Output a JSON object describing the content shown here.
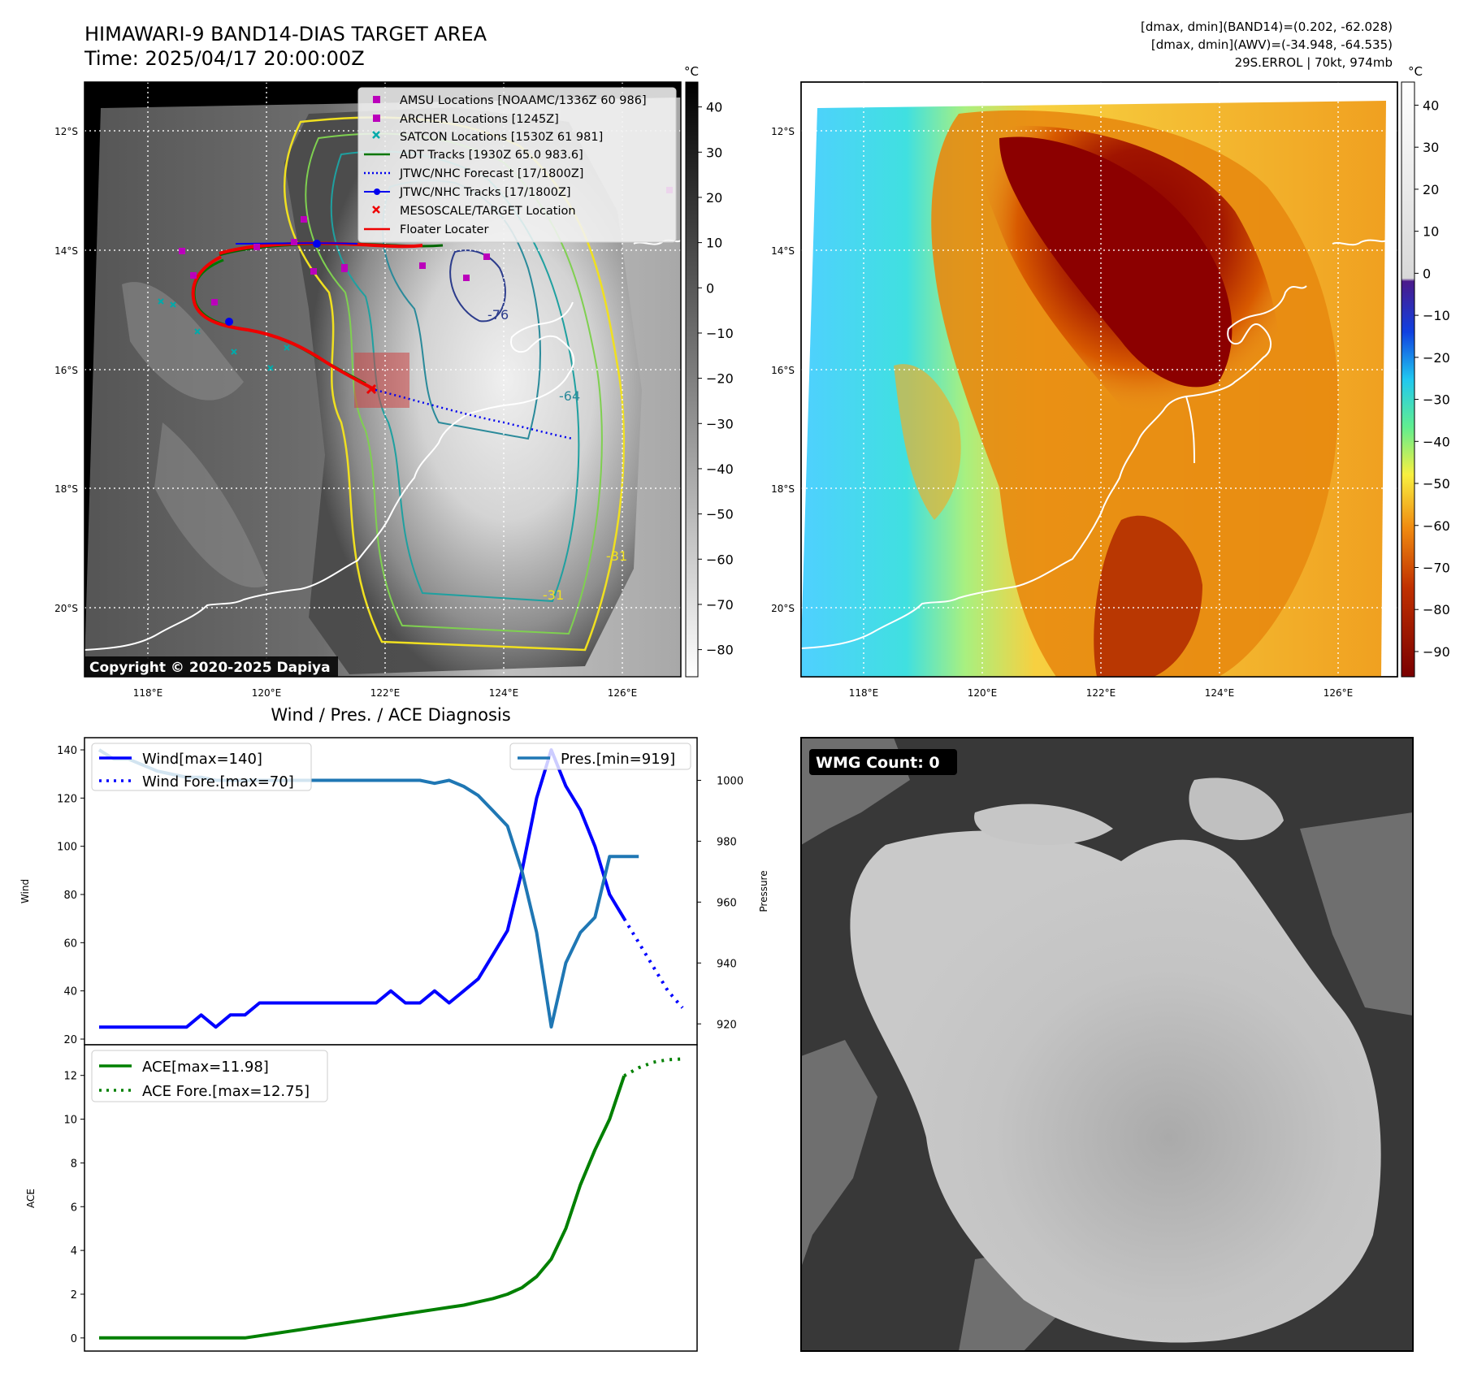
{
  "header": {
    "title_line1": "HIMAWARI-9 BAND14-DIAS TARGET AREA",
    "title_line2": "Time: 2025/04/17 20:00:00Z",
    "info_line1": "[dmax, dmin](BAND14)=(0.202, -62.028)",
    "info_line2": "[dmax, dmin](AWV)=(-34.948, -64.535)",
    "info_line3": "29S.ERROL | 70kt, 974mb"
  },
  "map": {
    "lat_labels": [
      "12°S",
      "14°S",
      "16°S",
      "18°S",
      "20°S"
    ],
    "lon_labels": [
      "118°E",
      "120°E",
      "122°E",
      "124°E",
      "126°E"
    ],
    "copyright": "Copyright © 2020-2025 Dapiya",
    "contour_labels": [
      "-76",
      "-64",
      "-31",
      "-31"
    ],
    "legend": [
      {
        "label": "AMSU Locations [NOAAMC/1336Z 60 986]",
        "color": "#bb00bb",
        "marker": "square"
      },
      {
        "label": "ARCHER Locations [1245Z]",
        "color": "#bb00bb",
        "marker": "square"
      },
      {
        "label": "SATCON Locations [1530Z 61 981]",
        "color": "#00aaaa",
        "marker": "x"
      },
      {
        "label": "ADT Tracks [1930Z 65.0 983.6]",
        "color": "#007700",
        "marker": "line"
      },
      {
        "label": "JTWC/NHC Forecast [17/1800Z]",
        "color": "#0000ee",
        "marker": "dotted"
      },
      {
        "label": "JTWC/NHC Tracks [17/1800Z]",
        "color": "#0000ee",
        "marker": "line-dot"
      },
      {
        "label": "MESOSCALE/TARGET Location",
        "color": "#ee0000",
        "marker": "x"
      },
      {
        "label": "Floater Locater",
        "color": "#ee0000",
        "marker": "line"
      }
    ],
    "colorbar_left": {
      "unit": "°C",
      "ticks": [
        "40",
        "30",
        "20",
        "10",
        "0",
        "−10",
        "−20",
        "−30",
        "−40",
        "−50",
        "−60",
        "−70",
        "−80"
      ]
    },
    "colorbar_right": {
      "unit": "°C",
      "ticks": [
        "40",
        "30",
        "20",
        "10",
        "0",
        "−10",
        "−20",
        "−30",
        "−40",
        "−50",
        "−60",
        "−70",
        "−80",
        "−90"
      ]
    }
  },
  "wmg": {
    "label": "WMG Count: 0"
  },
  "chart_data": [
    {
      "type": "line",
      "title": "Wind / Pres. / ACE Diagnosis",
      "ylabel": "Wind",
      "ylim": [
        20,
        140
      ],
      "yticks": [
        20,
        40,
        60,
        80,
        100,
        120,
        140
      ],
      "xlim": [
        -1,
        41
      ],
      "series": [
        {
          "name": "Wind[max=140]",
          "color": "#0000ff",
          "style": "solid",
          "x": [
            0,
            1,
            2,
            3,
            4,
            5,
            6,
            7,
            8,
            9,
            10,
            11,
            12,
            13,
            14,
            15,
            16,
            17,
            18,
            19,
            20,
            21,
            22,
            23,
            24,
            25,
            26,
            27,
            28,
            29,
            30,
            31,
            32,
            33,
            34,
            35,
            36
          ],
          "values": [
            25,
            25,
            25,
            25,
            25,
            25,
            25,
            30,
            25,
            30,
            30,
            35,
            35,
            35,
            35,
            35,
            35,
            35,
            35,
            35,
            40,
            35,
            35,
            40,
            35,
            40,
            45,
            55,
            65,
            90,
            120,
            140,
            125,
            115,
            100,
            80,
            70
          ]
        },
        {
          "name": "Wind Fore.[max=70]",
          "color": "#0000ff",
          "style": "dotted",
          "x": [
            36,
            37,
            38,
            39,
            40
          ],
          "values": [
            70,
            60,
            50,
            40,
            33
          ]
        }
      ]
    },
    {
      "type": "line",
      "ylabel": "Pressure",
      "ylim": [
        915,
        1010
      ],
      "yticks": [
        920,
        940,
        960,
        980,
        1000
      ],
      "xlim": [
        -1,
        41
      ],
      "series": [
        {
          "name": "Pres.[min=919]",
          "color": "#1f77b4",
          "style": "solid",
          "x": [
            0,
            1,
            2,
            3,
            4,
            5,
            6,
            7,
            8,
            9,
            10,
            11,
            12,
            13,
            14,
            15,
            16,
            17,
            18,
            19,
            20,
            21,
            22,
            23,
            24,
            25,
            26,
            27,
            28,
            29,
            30,
            31,
            32,
            33,
            34,
            35,
            36,
            37
          ],
          "values": [
            1010,
            1007,
            1007,
            1005,
            1003,
            1002,
            1001,
            1001,
            1000,
            1000,
            1000,
            1000,
            1000,
            1000,
            1000,
            1000,
            1000,
            1000,
            1000,
            1000,
            1000,
            1000,
            1000,
            999,
            1000,
            998,
            995,
            990,
            985,
            970,
            950,
            919,
            940,
            950,
            955,
            975,
            975,
            975
          ]
        }
      ]
    },
    {
      "type": "line",
      "ylabel": "ACE",
      "ylim": [
        -0.6,
        13.4
      ],
      "yticks": [
        0,
        2,
        4,
        6,
        8,
        10,
        12
      ],
      "xlim": [
        -1,
        41
      ],
      "series": [
        {
          "name": "ACE[max=11.98]",
          "color": "#008000",
          "style": "solid",
          "x": [
            0,
            1,
            2,
            3,
            4,
            5,
            6,
            7,
            8,
            9,
            10,
            11,
            12,
            13,
            14,
            15,
            16,
            17,
            18,
            19,
            20,
            21,
            22,
            23,
            24,
            25,
            26,
            27,
            28,
            29,
            30,
            31,
            32,
            33,
            34,
            35,
            36
          ],
          "values": [
            0,
            0,
            0,
            0,
            0,
            0,
            0,
            0,
            0,
            0,
            0,
            0.1,
            0.2,
            0.3,
            0.4,
            0.5,
            0.6,
            0.7,
            0.8,
            0.9,
            1.0,
            1.1,
            1.2,
            1.3,
            1.4,
            1.5,
            1.65,
            1.8,
            2.0,
            2.3,
            2.8,
            3.6,
            5.0,
            7.0,
            8.6,
            10.0,
            11.98
          ]
        },
        {
          "name": "ACE Fore.[max=12.75]",
          "color": "#008000",
          "style": "dotted",
          "x": [
            36,
            37,
            38,
            39,
            40
          ],
          "values": [
            11.98,
            12.35,
            12.6,
            12.72,
            12.75
          ]
        }
      ]
    }
  ]
}
